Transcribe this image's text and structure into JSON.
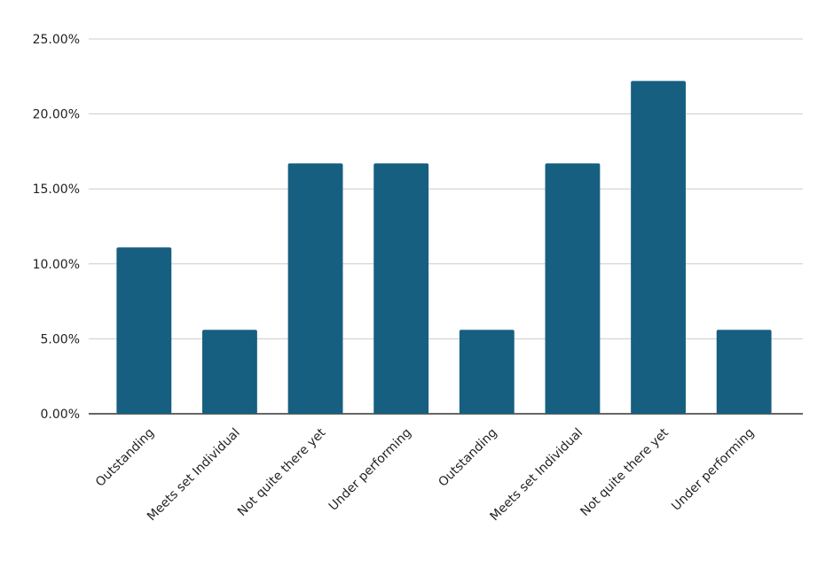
{
  "chart_data": {
    "type": "bar",
    "categories": [
      "Outstanding",
      "Meets set Individual",
      "Not quite there yet",
      "Under performing",
      "Outstanding",
      "Meets set Individual",
      "Not quite there yet",
      "Under performing"
    ],
    "values": [
      11.1,
      5.6,
      16.7,
      16.7,
      5.6,
      16.7,
      22.2,
      5.6
    ],
    "color": "#175f80",
    "ylim": [
      0,
      25
    ],
    "yticks": [
      {
        "value": 0,
        "label": "0.00%"
      },
      {
        "value": 5,
        "label": "5.00%"
      },
      {
        "value": 10,
        "label": "10.00%"
      },
      {
        "value": 15,
        "label": "15.00%"
      },
      {
        "value": 20,
        "label": "20.00%"
      },
      {
        "value": 25,
        "label": "25.00%"
      }
    ],
    "grid": true
  }
}
